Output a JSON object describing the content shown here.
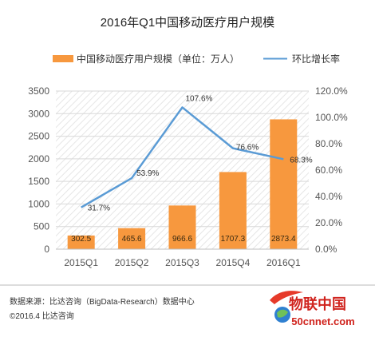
{
  "chart_data": {
    "type": "bar",
    "title": "2016年Q1中国移动医疗用户规模",
    "categories": [
      "2015Q1",
      "2015Q2",
      "2015Q3",
      "2015Q4",
      "2016Q1"
    ],
    "series": [
      {
        "name": "中国移动医疗用户规模（单位：万人）",
        "type": "bar",
        "axis": "left",
        "values": [
          302.5,
          465.6,
          966.6,
          1707.3,
          2873.4
        ],
        "labels": [
          "302.5",
          "465.6",
          "966.6",
          "1707.3",
          "2873.4"
        ],
        "color": "#f7983e"
      },
      {
        "name": "环比增长率",
        "type": "line",
        "axis": "right",
        "values": [
          31.7,
          53.9,
          107.6,
          76.6,
          68.3
        ],
        "labels": [
          "31.7%",
          "53.9%",
          "107.6%",
          "76.6%",
          "68.3%"
        ],
        "color": "#5a9bd5"
      }
    ],
    "y_left": {
      "ylim": [
        0,
        3500
      ],
      "ticks": [
        0,
        500,
        1000,
        1500,
        2000,
        2500,
        3000,
        3500
      ],
      "tick_labels": [
        "0",
        "500",
        "1000",
        "1500",
        "2000",
        "2500",
        "3000",
        "3500"
      ]
    },
    "y_right": {
      "ylim": [
        0,
        120
      ],
      "ticks": [
        0,
        20,
        40,
        60,
        80,
        100,
        120
      ],
      "tick_labels": [
        "0.0%",
        "20.0%",
        "40.0%",
        "60.0%",
        "80.0%",
        "100.0%",
        "120.0%"
      ]
    },
    "grid": true,
    "plot_background": "diagonal-hatch",
    "legend_position": "top"
  },
  "footer": {
    "source": "数据来源：比达咨询（BigData-Research）数据中心",
    "copyright": "©2016.4  比达咨询"
  },
  "watermark": {
    "name": "物联中国",
    "url": "50cnnet.com"
  }
}
